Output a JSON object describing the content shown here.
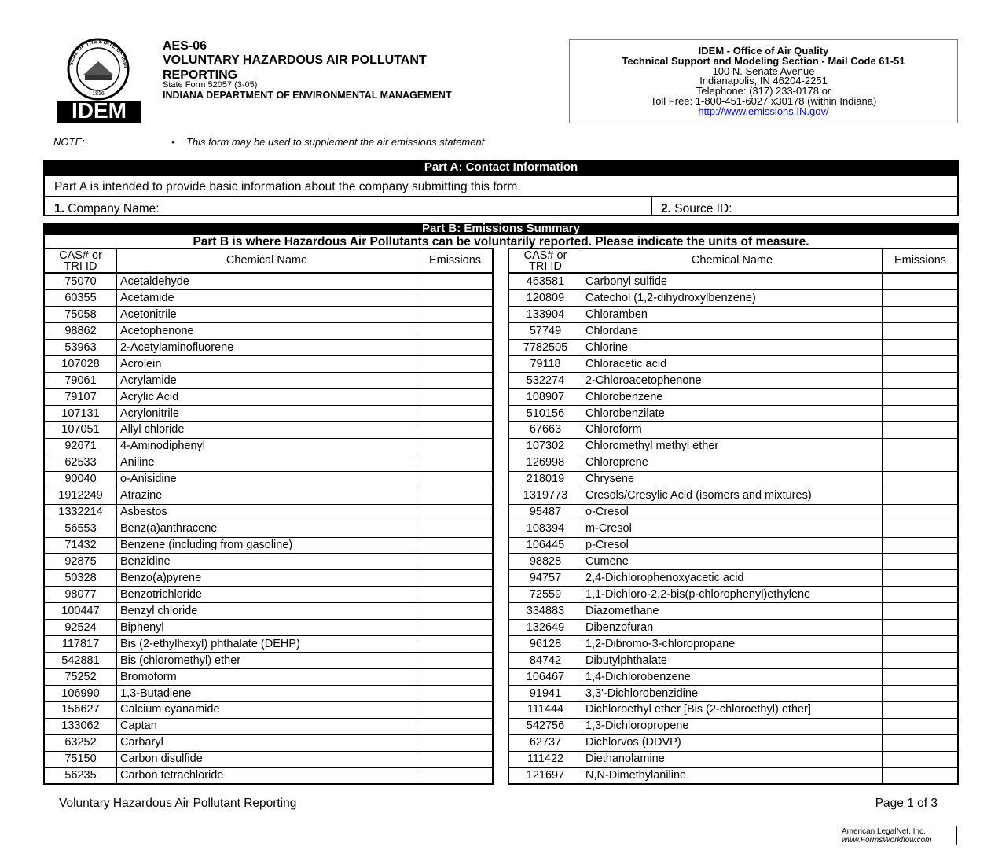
{
  "header": {
    "seal": {
      "text": "SEAL OF THE STATE OF INDIANA",
      "year": "1816"
    },
    "logo": "IDEM",
    "form_code": "AES-06",
    "title_line1": "VOLUNTARY HAZARDOUS AIR POLLUTANT",
    "title_line2": "REPORTING",
    "state_form": "State Form 52057 (3-05)",
    "agency": "INDIANA DEPARTMENT OF ENVIRONMENTAL MANAGEMENT"
  },
  "contact_box": {
    "office": "IDEM - Office of Air Quality",
    "section": "Technical Support and Modeling Section - Mail Code 61-51",
    "address": "100 N. Senate Avenue",
    "city": "Indianapolis, IN 46204-2251",
    "telephone": "Telephone: (317) 233-0178 or",
    "toll_free": "Toll Free: 1-800-451-6027 x30178 (within Indiana)",
    "url": "http://www.emissions.IN.gov/"
  },
  "note": {
    "label": "NOTE:",
    "text": "This form may be used to supplement the air emissions statement"
  },
  "part_a": {
    "title": "Part A: Contact Information",
    "intro": "Part A is intended to provide basic information about the company submitting this form.",
    "field1_number": "1.",
    "field1_label": "Company Name:",
    "field2_number": "2.",
    "field2_label": "Source ID:"
  },
  "part_b": {
    "title": "Part B:  Emissions Summary",
    "intro": "Part B is where Hazardous Air Pollutants can be voluntarily reported.  Please indicate the units of measure.",
    "columns": [
      "CAS# or TRI ID",
      "Chemical Name",
      "Emissions"
    ],
    "left_rows": [
      [
        "75070",
        "Acetaldehyde"
      ],
      [
        "60355",
        "Acetamide"
      ],
      [
        "75058",
        "Acetonitrile"
      ],
      [
        "98862",
        "Acetophenone"
      ],
      [
        "53963",
        "2-Acetylaminofluorene"
      ],
      [
        "107028",
        "Acrolein"
      ],
      [
        "79061",
        "Acrylamide"
      ],
      [
        "79107",
        "Acrylic Acid"
      ],
      [
        "107131",
        "Acrylonitrile"
      ],
      [
        "107051",
        "Allyl chloride"
      ],
      [
        "92671",
        "4-Aminodiphenyl"
      ],
      [
        "62533",
        "Aniline"
      ],
      [
        "90040",
        "o-Anisidine"
      ],
      [
        "1912249",
        "Atrazine"
      ],
      [
        "1332214",
        "Asbestos"
      ],
      [
        "56553",
        "Benz(a)anthracene"
      ],
      [
        "71432",
        "Benzene (including from gasoline)"
      ],
      [
        "92875",
        "Benzidine"
      ],
      [
        "50328",
        "Benzo(a)pyrene"
      ],
      [
        "98077",
        "Benzotrichloride"
      ],
      [
        "100447",
        "Benzyl chloride"
      ],
      [
        "92524",
        "Biphenyl"
      ],
      [
        "117817",
        "Bis (2-ethylhexyl) phthalate (DEHP)"
      ],
      [
        "542881",
        "Bis (chloromethyl) ether"
      ],
      [
        "75252",
        "Bromoform"
      ],
      [
        "106990",
        "1,3-Butadiene"
      ],
      [
        "156627",
        "Calcium cyanamide"
      ],
      [
        "133062",
        "Captan"
      ],
      [
        "63252",
        "Carbaryl"
      ],
      [
        "75150",
        "Carbon disulfide"
      ],
      [
        "56235",
        "Carbon tetrachloride"
      ]
    ],
    "right_rows": [
      [
        "463581",
        "Carbonyl sulfide"
      ],
      [
        "120809",
        "Catechol (1,2-dihydroxylbenzene)"
      ],
      [
        "133904",
        "Chloramben"
      ],
      [
        "57749",
        "Chlordane"
      ],
      [
        "7782505",
        "Chlorine"
      ],
      [
        "79118",
        "Chloracetic acid"
      ],
      [
        "532274",
        "2-Chloroacetophenone"
      ],
      [
        "108907",
        "Chlorobenzene"
      ],
      [
        "510156",
        "Chlorobenzilate"
      ],
      [
        "67663",
        "Chloroform"
      ],
      [
        "107302",
        "Chloromethyl methyl ether"
      ],
      [
        "126998",
        "Chloroprene"
      ],
      [
        "218019",
        "Chrysene"
      ],
      [
        "1319773",
        "Cresols/Cresylic Acid (isomers and mixtures)"
      ],
      [
        "95487",
        "o-Cresol"
      ],
      [
        "108394",
        "m-Cresol"
      ],
      [
        "106445",
        "p-Cresol"
      ],
      [
        "98828",
        "Cumene"
      ],
      [
        "94757",
        "2,4-Dichlorophenoxyacetic acid"
      ],
      [
        "72559",
        "1,1-Dichloro-2,2-bis(p-chlorophenyl)ethylene"
      ],
      [
        "334883",
        "Diazomethane"
      ],
      [
        "132649",
        "Dibenzofuran"
      ],
      [
        "96128",
        "1,2-Dibromo-3-chloropropane"
      ],
      [
        "84742",
        "Dibutylphthalate"
      ],
      [
        "106467",
        "1,4-Dichlorobenzene"
      ],
      [
        "91941",
        "3,3'-Dichlorobenzidine"
      ],
      [
        "111444",
        "Dichloroethyl ether [Bis (2-chloroethyl) ether]"
      ],
      [
        "542756",
        "1,3-Dichloropropene"
      ],
      [
        "62737",
        "Dichlorvos (DDVP)"
      ],
      [
        "111422",
        "Diethanolamine"
      ],
      [
        "121697",
        "N,N-Dimethylaniline"
      ]
    ]
  },
  "footer": {
    "form_name": "Voluntary Hazardous Air Pollutant Reporting",
    "page": "Page 1 of 3",
    "vendor": "American LegalNet, Inc.",
    "vendor_url": "www.FormsWorkflow.com"
  }
}
